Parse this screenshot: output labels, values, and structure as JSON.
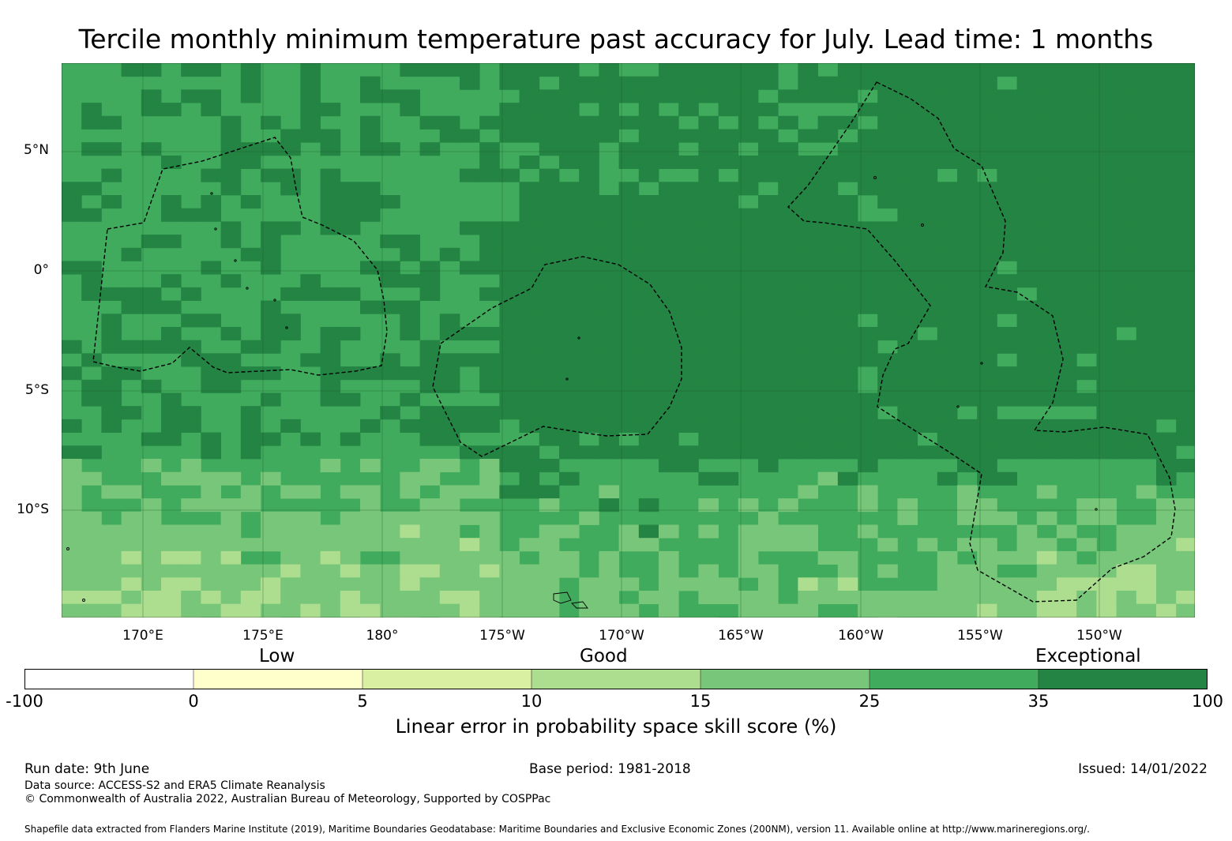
{
  "title": "Tercile monthly minimum temperature past accuracy for July. Lead time: 1 months",
  "map": {
    "lat_labels": [
      "5°N",
      "0°",
      "5°S",
      "10°S"
    ],
    "lon_labels": [
      "170°E",
      "175°E",
      "180°",
      "175°W",
      "170°W",
      "165°W",
      "160°W",
      "155°W",
      "150°W"
    ],
    "region_extent": {
      "lon_min": 166.6,
      "lon_max": -146.2,
      "lat_min": -14.6,
      "lat_max": 8.6
    }
  },
  "legend": {
    "categories": [
      "Low",
      "Good",
      "Exceptional"
    ],
    "boundaries": [
      "-100",
      "0",
      "5",
      "10",
      "15",
      "25",
      "35",
      "100"
    ],
    "colors": [
      "#ffffff",
      "#ffffcc",
      "#d9f0a3",
      "#addd8e",
      "#78c679",
      "#41ab5d",
      "#238443"
    ],
    "label": "Linear error in probability space skill score (%)"
  },
  "footer": {
    "run_date": "Run date: 9th June",
    "base_period": "Base period: 1981-2018",
    "issued": "Issued: 14/01/2022",
    "data_source": "Data source: ACCESS-S2 and ERA5 Climate Reanalysis",
    "copyright": "© Commonwealth of Australia 2022, Australian Bureau of Meteorology, Supported by COSPPac",
    "shapefile": "Shapefile data extracted from Flanders Marine Institute (2019), Maritime Boundaries Geodatabase: Maritime Boundaries and Exclusive Economic Zones (200NM), version 11. Available online at http://www.marineregions.org/."
  }
}
